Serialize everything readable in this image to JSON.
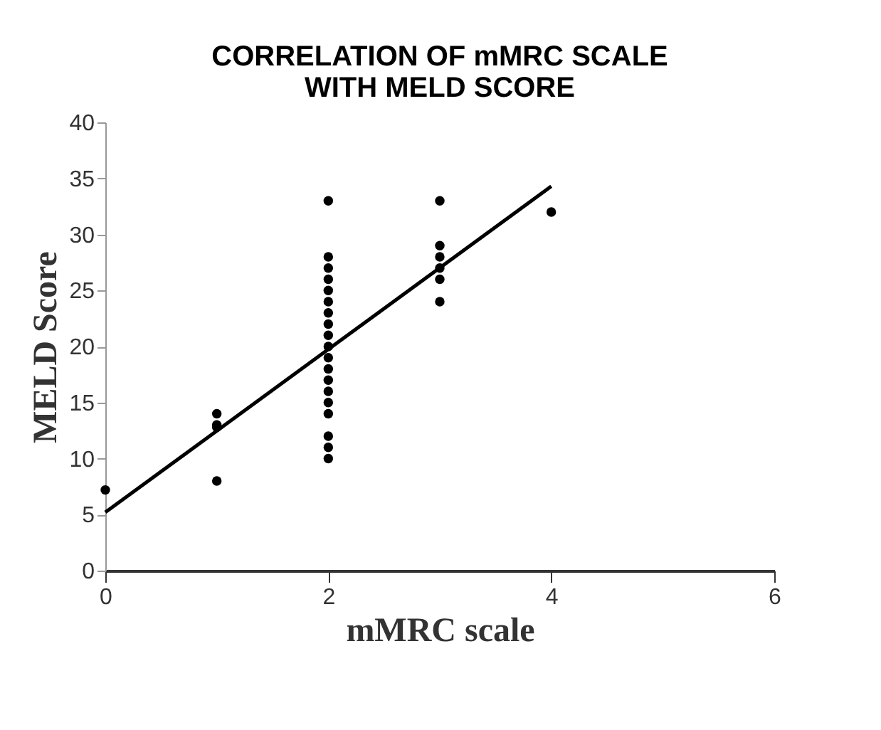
{
  "chart_data": {
    "type": "scatter",
    "title": [
      "CORRELATION OF mMRC SCALE",
      "WITH MELD SCORE"
    ],
    "xlabel": "mMRC scale",
    "ylabel": "MELD Score",
    "xlim": [
      0,
      6
    ],
    "xticks": [
      0,
      2,
      4,
      6
    ],
    "ylim": [
      0,
      40
    ],
    "yticks": [
      0,
      5,
      10,
      15,
      20,
      25,
      30,
      35,
      40
    ],
    "grid": false,
    "legend": false,
    "series": [
      {
        "color": "#000000",
        "marker": "circle",
        "x": [
          0,
          1,
          1,
          1,
          1,
          2,
          2,
          2,
          2,
          2,
          2,
          2,
          2,
          2,
          2,
          2,
          2,
          2,
          2,
          2,
          2,
          2,
          2,
          2,
          3,
          3,
          3,
          3,
          3,
          3,
          4
        ],
        "values": [
          7.2,
          14,
          13,
          12.8,
          8,
          33,
          28,
          27,
          26,
          25,
          24,
          23,
          22,
          21,
          20,
          19,
          18,
          17,
          16,
          15,
          14,
          12,
          11,
          10,
          33,
          29,
          28,
          27,
          26,
          24,
          32
        ]
      },
      {
        "type": "line",
        "color": "#000000",
        "marker": "none",
        "line_style": "solid",
        "x": [
          0,
          4
        ],
        "values": [
          5.2,
          34.3
        ]
      }
    ]
  }
}
